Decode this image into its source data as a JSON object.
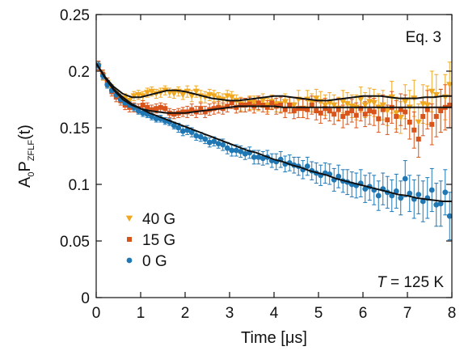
{
  "chart_data": {
    "type": "scatter",
    "title": "",
    "xlabel": "Time [μs]",
    "ylabel": {
      "main": "A",
      "sub0": "0",
      "mid": "P",
      "sub1": "ZFLF",
      "tail": "(t)"
    },
    "xlim": [
      0,
      8
    ],
    "ylim": [
      0,
      0.25
    ],
    "xticks": [
      "0",
      "1",
      "2",
      "3",
      "4",
      "5",
      "6",
      "7",
      "8"
    ],
    "yticks": [
      "0",
      "0.05",
      "0.1",
      "0.15",
      "0.2",
      "0.25"
    ],
    "grid": false,
    "legend_position": "bottom-left",
    "annotations": {
      "top_right": "Eq. 3",
      "bottom_right_italic": "T",
      "bottom_right_rest": " = 125 K"
    },
    "series": [
      {
        "name": "40 G",
        "marker": "triangle-down",
        "color": "#f0a820",
        "x": [
          0.05,
          0.15,
          0.25,
          0.35,
          0.45,
          0.55,
          0.65,
          0.75,
          0.85,
          0.95,
          1.05,
          1.15,
          1.25,
          1.35,
          1.45,
          1.55,
          1.65,
          1.75,
          1.85,
          1.95,
          2.05,
          2.15,
          2.25,
          2.35,
          2.45,
          2.55,
          2.65,
          2.75,
          2.85,
          2.95,
          3.05,
          3.15,
          3.25,
          3.35,
          3.45,
          3.55,
          3.65,
          3.75,
          3.85,
          3.95,
          4.05,
          4.15,
          4.25,
          4.35,
          4.45,
          4.55,
          4.65,
          4.75,
          4.85,
          4.95,
          5.05,
          5.15,
          5.25,
          5.35,
          5.45,
          5.55,
          5.65,
          5.75,
          5.85,
          5.95,
          6.05,
          6.15,
          6.25,
          6.35,
          6.45,
          6.55,
          6.65,
          6.75,
          6.85,
          6.95,
          7.05,
          7.15,
          7.25,
          7.35,
          7.45,
          7.55,
          7.65,
          7.75,
          7.85,
          7.95
        ],
        "y": [
          0.204,
          0.196,
          0.19,
          0.184,
          0.18,
          0.176,
          0.176,
          0.174,
          0.178,
          0.179,
          0.178,
          0.181,
          0.182,
          0.18,
          0.181,
          0.183,
          0.181,
          0.18,
          0.182,
          0.179,
          0.182,
          0.178,
          0.182,
          0.178,
          0.177,
          0.179,
          0.178,
          0.176,
          0.175,
          0.178,
          0.177,
          0.174,
          0.171,
          0.17,
          0.172,
          0.172,
          0.171,
          0.174,
          0.17,
          0.173,
          0.171,
          0.171,
          0.173,
          0.17,
          0.17,
          0.175,
          0.167,
          0.175,
          0.172,
          0.176,
          0.173,
          0.17,
          0.172,
          0.17,
          0.167,
          0.173,
          0.171,
          0.169,
          0.168,
          0.175,
          0.17,
          0.173,
          0.172,
          0.168,
          0.17,
          0.165,
          0.177,
          0.163,
          0.159,
          0.173,
          0.168,
          0.176,
          0.155,
          0.171,
          0.17,
          0.182,
          0.179,
          0.165,
          0.177,
          0.188
        ],
        "err": [
          0.004,
          0.004,
          0.004,
          0.004,
          0.004,
          0.004,
          0.004,
          0.004,
          0.004,
          0.004,
          0.004,
          0.004,
          0.004,
          0.004,
          0.004,
          0.004,
          0.004,
          0.004,
          0.004,
          0.004,
          0.005,
          0.005,
          0.005,
          0.005,
          0.005,
          0.005,
          0.005,
          0.005,
          0.005,
          0.005,
          0.005,
          0.005,
          0.006,
          0.006,
          0.006,
          0.006,
          0.006,
          0.006,
          0.006,
          0.006,
          0.007,
          0.007,
          0.007,
          0.007,
          0.007,
          0.008,
          0.008,
          0.008,
          0.008,
          0.008,
          0.009,
          0.009,
          0.009,
          0.009,
          0.01,
          0.01,
          0.01,
          0.01,
          0.011,
          0.011,
          0.011,
          0.012,
          0.012,
          0.012,
          0.013,
          0.013,
          0.014,
          0.014,
          0.014,
          0.015,
          0.015,
          0.016,
          0.016,
          0.017,
          0.017,
          0.018,
          0.018,
          0.019,
          0.02,
          0.02
        ]
      },
      {
        "name": "15 G",
        "marker": "square",
        "color": "#d9541a",
        "x": [
          0.05,
          0.15,
          0.25,
          0.35,
          0.45,
          0.55,
          0.65,
          0.75,
          0.85,
          0.95,
          1.05,
          1.15,
          1.25,
          1.35,
          1.45,
          1.55,
          1.65,
          1.75,
          1.85,
          1.95,
          2.05,
          2.15,
          2.25,
          2.35,
          2.45,
          2.55,
          2.65,
          2.75,
          2.85,
          2.95,
          3.05,
          3.15,
          3.25,
          3.35,
          3.45,
          3.55,
          3.65,
          3.75,
          3.85,
          3.95,
          4.05,
          4.15,
          4.25,
          4.35,
          4.45,
          4.55,
          4.65,
          4.75,
          4.85,
          4.95,
          5.05,
          5.15,
          5.25,
          5.35,
          5.45,
          5.55,
          5.65,
          5.75,
          5.85,
          5.95,
          6.05,
          6.15,
          6.25,
          6.35,
          6.45,
          6.55,
          6.65,
          6.75,
          6.85,
          6.95,
          7.05,
          7.15,
          7.25,
          7.35,
          7.45,
          7.55,
          7.65,
          7.75,
          7.85,
          7.95
        ],
        "y": [
          0.205,
          0.197,
          0.19,
          0.182,
          0.177,
          0.174,
          0.17,
          0.168,
          0.168,
          0.167,
          0.17,
          0.168,
          0.166,
          0.167,
          0.168,
          0.167,
          0.163,
          0.162,
          0.163,
          0.164,
          0.164,
          0.166,
          0.164,
          0.167,
          0.164,
          0.166,
          0.167,
          0.168,
          0.167,
          0.169,
          0.172,
          0.168,
          0.17,
          0.17,
          0.171,
          0.169,
          0.172,
          0.17,
          0.168,
          0.172,
          0.169,
          0.17,
          0.166,
          0.17,
          0.165,
          0.167,
          0.167,
          0.166,
          0.17,
          0.165,
          0.163,
          0.167,
          0.165,
          0.162,
          0.166,
          0.16,
          0.163,
          0.165,
          0.161,
          0.167,
          0.162,
          0.165,
          0.164,
          0.158,
          0.166,
          0.157,
          0.168,
          0.16,
          0.166,
          0.164,
          0.155,
          0.148,
          0.14,
          0.16,
          0.166,
          0.153,
          0.16,
          0.165,
          0.168,
          0.17
        ],
        "err": [
          0.004,
          0.004,
          0.004,
          0.004,
          0.004,
          0.004,
          0.004,
          0.004,
          0.004,
          0.004,
          0.004,
          0.004,
          0.004,
          0.004,
          0.004,
          0.004,
          0.004,
          0.004,
          0.004,
          0.004,
          0.005,
          0.005,
          0.005,
          0.005,
          0.005,
          0.005,
          0.005,
          0.005,
          0.005,
          0.005,
          0.005,
          0.005,
          0.006,
          0.006,
          0.006,
          0.006,
          0.006,
          0.006,
          0.006,
          0.006,
          0.007,
          0.007,
          0.007,
          0.007,
          0.007,
          0.008,
          0.008,
          0.008,
          0.008,
          0.008,
          0.009,
          0.009,
          0.009,
          0.009,
          0.01,
          0.01,
          0.01,
          0.01,
          0.011,
          0.011,
          0.011,
          0.012,
          0.012,
          0.012,
          0.013,
          0.013,
          0.014,
          0.014,
          0.014,
          0.015,
          0.015,
          0.016,
          0.016,
          0.017,
          0.017,
          0.018,
          0.018,
          0.019,
          0.02,
          0.02
        ]
      },
      {
        "name": "0 G",
        "marker": "circle",
        "color": "#1f77b4",
        "x": [
          0.05,
          0.15,
          0.25,
          0.35,
          0.45,
          0.55,
          0.65,
          0.75,
          0.85,
          0.95,
          1.05,
          1.15,
          1.25,
          1.35,
          1.45,
          1.55,
          1.65,
          1.75,
          1.85,
          1.95,
          2.05,
          2.15,
          2.25,
          2.35,
          2.45,
          2.55,
          2.65,
          2.75,
          2.85,
          2.95,
          3.05,
          3.15,
          3.25,
          3.35,
          3.45,
          3.55,
          3.65,
          3.75,
          3.85,
          3.95,
          4.05,
          4.15,
          4.25,
          4.35,
          4.45,
          4.55,
          4.65,
          4.75,
          4.85,
          4.95,
          5.05,
          5.15,
          5.25,
          5.35,
          5.45,
          5.55,
          5.65,
          5.75,
          5.85,
          5.95,
          6.05,
          6.15,
          6.25,
          6.35,
          6.45,
          6.55,
          6.65,
          6.75,
          6.85,
          6.95,
          7.05,
          7.15,
          7.25,
          7.35,
          7.45,
          7.55,
          7.65,
          7.75,
          7.85,
          7.95
        ],
        "y": [
          0.205,
          0.196,
          0.188,
          0.183,
          0.179,
          0.175,
          0.172,
          0.17,
          0.168,
          0.165,
          0.163,
          0.162,
          0.16,
          0.158,
          0.158,
          0.156,
          0.155,
          0.152,
          0.15,
          0.147,
          0.148,
          0.146,
          0.143,
          0.142,
          0.14,
          0.137,
          0.138,
          0.136,
          0.135,
          0.132,
          0.13,
          0.13,
          0.129,
          0.127,
          0.128,
          0.124,
          0.124,
          0.123,
          0.124,
          0.121,
          0.12,
          0.122,
          0.118,
          0.119,
          0.117,
          0.116,
          0.113,
          0.116,
          0.112,
          0.11,
          0.108,
          0.11,
          0.109,
          0.104,
          0.107,
          0.103,
          0.102,
          0.1,
          0.099,
          0.101,
          0.096,
          0.098,
          0.095,
          0.09,
          0.096,
          0.093,
          0.09,
          0.094,
          0.088,
          0.105,
          0.092,
          0.087,
          0.091,
          0.085,
          0.088,
          0.095,
          0.082,
          0.083,
          0.093,
          0.072
        ],
        "err": [
          0.003,
          0.003,
          0.003,
          0.003,
          0.003,
          0.003,
          0.003,
          0.003,
          0.003,
          0.003,
          0.003,
          0.003,
          0.003,
          0.003,
          0.003,
          0.003,
          0.003,
          0.003,
          0.004,
          0.004,
          0.004,
          0.004,
          0.004,
          0.004,
          0.004,
          0.004,
          0.004,
          0.004,
          0.005,
          0.005,
          0.005,
          0.005,
          0.005,
          0.005,
          0.005,
          0.006,
          0.006,
          0.006,
          0.006,
          0.006,
          0.007,
          0.007,
          0.007,
          0.007,
          0.007,
          0.008,
          0.008,
          0.008,
          0.008,
          0.009,
          0.009,
          0.009,
          0.009,
          0.01,
          0.01,
          0.01,
          0.011,
          0.011,
          0.011,
          0.012,
          0.012,
          0.012,
          0.013,
          0.013,
          0.014,
          0.014,
          0.014,
          0.015,
          0.015,
          0.016,
          0.016,
          0.017,
          0.017,
          0.018,
          0.018,
          0.019,
          0.019,
          0.02,
          0.02,
          0.021
        ]
      }
    ],
    "fits": [
      {
        "color": "#111111",
        "x": [
          0,
          0.2,
          0.4,
          0.6,
          0.8,
          1.0,
          1.2,
          1.4,
          1.6,
          1.8,
          2.0,
          2.2,
          2.4,
          2.6,
          2.8,
          3.0,
          3.2,
          3.4,
          3.6,
          3.8,
          4.0,
          4.2,
          4.4,
          4.6,
          4.8,
          5.0,
          5.2,
          5.4,
          5.6,
          5.8,
          6.0,
          6.2,
          6.4,
          6.6,
          6.8,
          7.0,
          7.2,
          7.4,
          7.6,
          7.8,
          8.0
        ],
        "y": [
          0.207,
          0.195,
          0.186,
          0.18,
          0.177,
          0.177,
          0.179,
          0.181,
          0.183,
          0.183,
          0.182,
          0.18,
          0.178,
          0.176,
          0.175,
          0.174,
          0.174,
          0.175,
          0.176,
          0.177,
          0.178,
          0.178,
          0.177,
          0.176,
          0.175,
          0.174,
          0.174,
          0.175,
          0.176,
          0.177,
          0.178,
          0.178,
          0.178,
          0.177,
          0.176,
          0.176,
          0.176,
          0.177,
          0.177,
          0.178,
          0.178
        ]
      },
      {
        "color": "#111111",
        "x": [
          0,
          0.2,
          0.4,
          0.6,
          0.8,
          1.0,
          1.2,
          1.4,
          1.6,
          1.8,
          2.0,
          2.2,
          2.4,
          2.6,
          2.8,
          3.0,
          3.2,
          3.4,
          3.6,
          3.8,
          4.0,
          4.2,
          4.4,
          4.6,
          4.8,
          5.0,
          5.2,
          5.4,
          5.6,
          5.8,
          6.0,
          6.2,
          6.4,
          6.6,
          6.8,
          7.0,
          7.2,
          7.4,
          7.6,
          7.8,
          8.0
        ],
        "y": [
          0.207,
          0.194,
          0.183,
          0.175,
          0.17,
          0.167,
          0.165,
          0.164,
          0.163,
          0.163,
          0.163,
          0.164,
          0.165,
          0.166,
          0.167,
          0.168,
          0.169,
          0.169,
          0.169,
          0.169,
          0.169,
          0.168,
          0.168,
          0.168,
          0.168,
          0.168,
          0.168,
          0.168,
          0.168,
          0.168,
          0.168,
          0.168,
          0.168,
          0.168,
          0.168,
          0.168,
          0.168,
          0.168,
          0.168,
          0.168,
          0.168
        ]
      },
      {
        "color": "#111111",
        "x": [
          0,
          0.2,
          0.4,
          0.6,
          0.8,
          1.0,
          1.2,
          1.4,
          1.6,
          1.8,
          2.0,
          2.2,
          2.4,
          2.6,
          2.8,
          3.0,
          3.2,
          3.4,
          3.6,
          3.8,
          4.0,
          4.2,
          4.4,
          4.6,
          4.8,
          5.0,
          5.2,
          5.4,
          5.6,
          5.8,
          6.0,
          6.2,
          6.4,
          6.6,
          6.8,
          7.0,
          7.2,
          7.4,
          7.6,
          7.8,
          8.0
        ],
        "y": [
          0.207,
          0.194,
          0.184,
          0.177,
          0.171,
          0.167,
          0.163,
          0.16,
          0.157,
          0.154,
          0.151,
          0.148,
          0.145,
          0.142,
          0.139,
          0.136,
          0.133,
          0.13,
          0.128,
          0.125,
          0.122,
          0.12,
          0.117,
          0.115,
          0.112,
          0.11,
          0.108,
          0.105,
          0.103,
          0.101,
          0.099,
          0.097,
          0.095,
          0.093,
          0.091,
          0.09,
          0.088,
          0.087,
          0.086,
          0.085,
          0.085
        ]
      }
    ]
  }
}
